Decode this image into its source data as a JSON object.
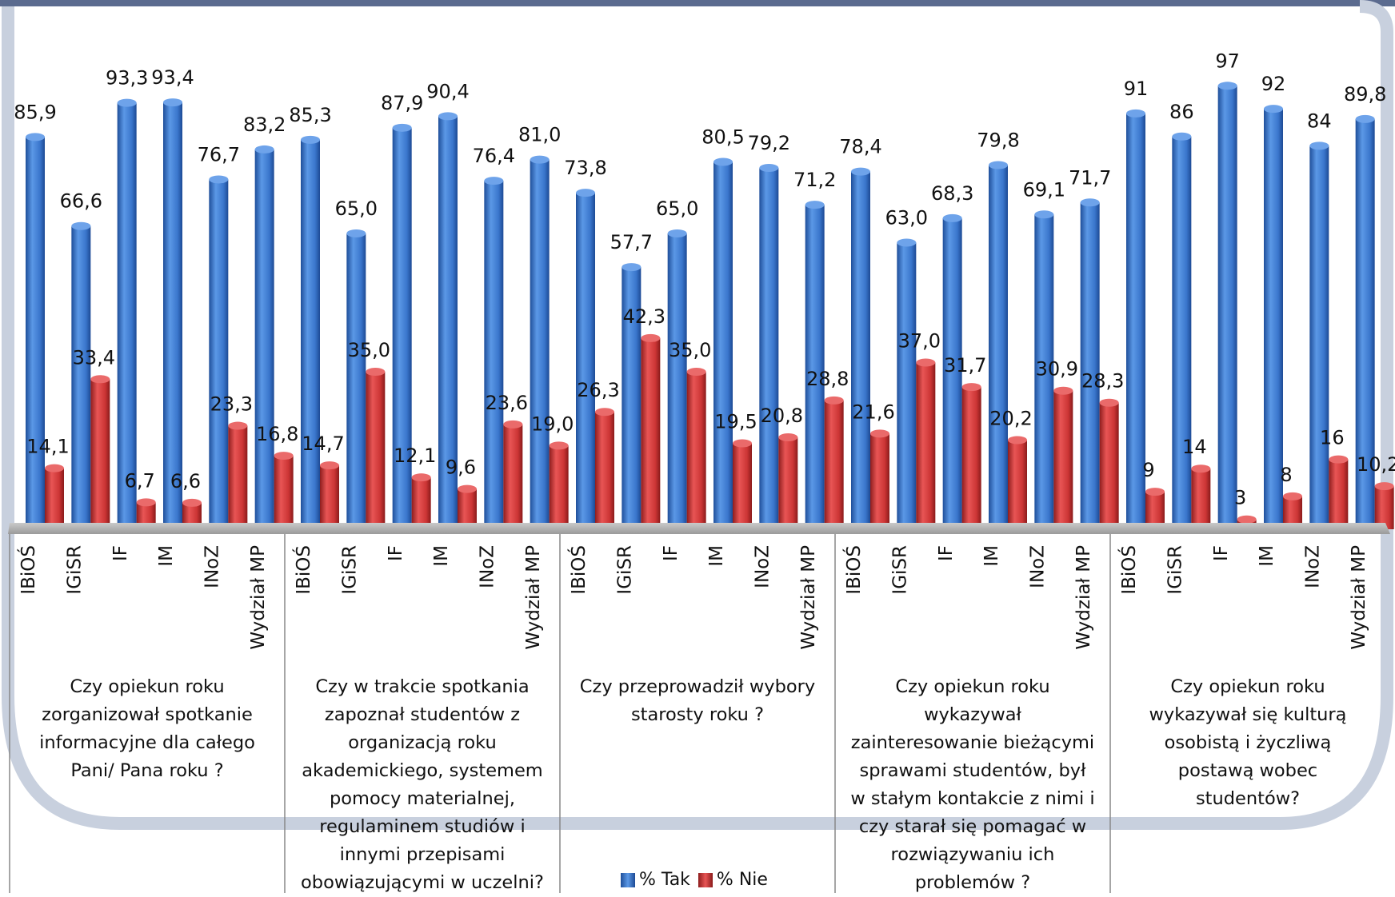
{
  "colors": {
    "tak": "#3f7fd4",
    "nie": "#d63a3a",
    "frame": "#5b6b8f",
    "arc": "#c8d0de"
  },
  "chart_data": {
    "type": "bar",
    "groups": [
      {
        "question": "Czy opiekun roku zorganizował spotkanie informacyjne dla całego Pani/ Pana roku ?",
        "question_lines": "Czy opiekun roku\nzorganizował spotkanie\ninformacyjne dla całego\nPani/ Pana roku ?",
        "categories": [
          "IBiOŚ",
          "IGiSR",
          "IF",
          "IM",
          "INoZ",
          "Wydział MP"
        ],
        "tak": [
          85.9,
          66.6,
          93.3,
          93.4,
          76.7,
          83.2
        ],
        "nie": [
          14.1,
          33.4,
          6.7,
          6.6,
          23.3,
          16.8
        ],
        "tak_labels": [
          "85,9",
          "66,6",
          "93,3",
          "93,4",
          "76,7",
          "83,2"
        ],
        "nie_labels": [
          "14,1",
          "33,4",
          "6,7",
          "6,6",
          "23,3",
          "16,8"
        ]
      },
      {
        "question": "Czy w trakcie spotkania zapoznał studentów z organizacją roku akademickiego, systemem pomocy materialnej, regulaminem studiów i innymi przepisami obowiązującymi w uczelni?",
        "question_lines": "Czy w trakcie spotkania\nzapoznał studentów z\norganizacją roku\nakademickiego, systemem\npomocy materialnej,\nregulaminem studiów i\ninnymi przepisami\nobowiązującymi w uczelni?",
        "categories": [
          "IBiOŚ",
          "IGiSR",
          "IF",
          "IM",
          "INoZ",
          "Wydział MP"
        ],
        "tak": [
          85.3,
          65.0,
          87.9,
          90.4,
          76.4,
          81.0
        ],
        "nie": [
          14.7,
          35.0,
          12.1,
          9.6,
          23.6,
          19.0
        ],
        "tak_labels": [
          "85,3",
          "65,0",
          "87,9",
          "90,4",
          "76,4",
          "81,0"
        ],
        "nie_labels": [
          "14,7",
          "35,0",
          "12,1",
          "9,6",
          "23,6",
          "19,0"
        ]
      },
      {
        "question": "Czy przeprowadził wybory starosty roku ?",
        "question_lines": "Czy przeprowadził wybory\nstarosty roku ?",
        "categories": [
          "IBiOŚ",
          "IGiSR",
          "IF",
          "IM",
          "INoZ",
          "Wydział MP"
        ],
        "tak": [
          73.8,
          57.7,
          65.0,
          80.5,
          79.2,
          71.2
        ],
        "nie": [
          26.3,
          42.3,
          35.0,
          19.5,
          20.8,
          28.8
        ],
        "tak_labels": [
          "73,8",
          "57,7",
          "65,0",
          "80,5",
          "79,2",
          "71,2"
        ],
        "nie_labels": [
          "26,3",
          "42,3",
          "35,0",
          "19,5",
          "20,8",
          "28,8"
        ]
      },
      {
        "question": "Czy opiekun roku wykazywał zainteresowanie bieżącymi sprawami studentów, był w stałym kontakcie z nimi i czy starał się pomagać w rozwiązywaniu ich problemów ?",
        "question_lines": "Czy opiekun roku\nwykazywał\nzainteresowanie bieżącymi\nsprawami studentów, był\nw stałym kontakcie z nimi i\nczy starał się pomagać w\nrozwiązywaniu ich\nproblemów ?",
        "categories": [
          "IBiOŚ",
          "IGiSR",
          "IF",
          "IM",
          "INoZ",
          "Wydział MP"
        ],
        "tak": [
          78.4,
          63.0,
          68.3,
          79.8,
          69.1,
          71.7
        ],
        "nie": [
          21.6,
          37.0,
          31.7,
          20.2,
          30.9,
          28.3
        ],
        "tak_labels": [
          "78,4",
          "63,0",
          "68,3",
          "79,8",
          "69,1",
          "71,7"
        ],
        "nie_labels": [
          "21,6",
          "37,0",
          "31,7",
          "20,2",
          "30,9",
          "28,3"
        ]
      },
      {
        "question": "Czy opiekun roku wykazywał się kulturą osobistą i życzliwą postawą wobec studentów?",
        "question_lines": "Czy opiekun roku\nwykazywał się kulturą\nosobistą i życzliwą\npostawą wobec\nstudentów?",
        "categories": [
          "IBiOŚ",
          "IGiSR",
          "IF",
          "IM",
          "INoZ",
          "Wydział MP"
        ],
        "tak": [
          91,
          86,
          97,
          92,
          84,
          89.8
        ],
        "nie": [
          9,
          14,
          3,
          8,
          16,
          10.2
        ],
        "tak_labels": [
          "91",
          "86",
          "97",
          "92",
          "84",
          "89,8"
        ],
        "nie_labels": [
          "9",
          "14",
          "3",
          "8",
          "16",
          "10,2"
        ]
      }
    ],
    "series": [
      {
        "name": "% Tak",
        "key": "tak"
      },
      {
        "name": "% Nie",
        "key": "nie"
      }
    ],
    "ylim": [
      0,
      100
    ],
    "grid": false,
    "legend_position": "bottom-center"
  }
}
